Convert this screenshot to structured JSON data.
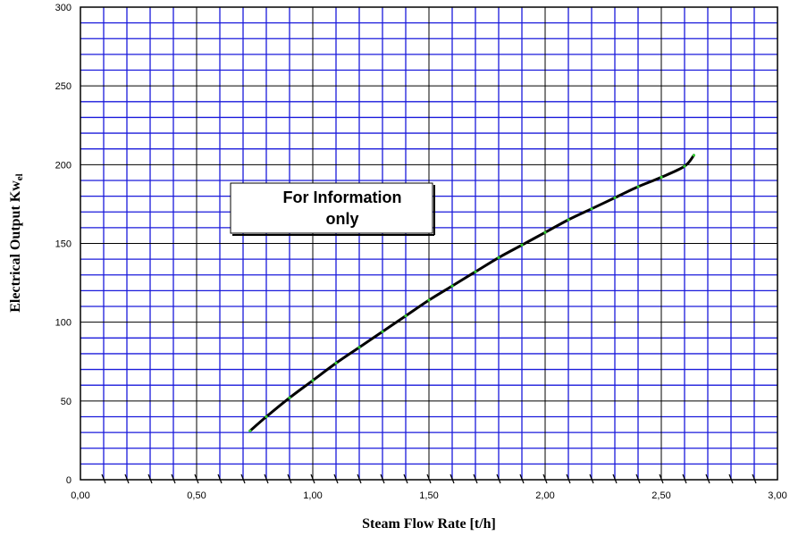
{
  "chart_data": {
    "type": "line",
    "title": "",
    "xlabel": "Steam Flow Rate [t/h]",
    "ylabel_main": "Electrical Output Kw",
    "ylabel_sub": "el",
    "xlim": [
      0,
      3
    ],
    "ylim": [
      0,
      300
    ],
    "x_ticks": [
      {
        "value": 0,
        "label": "0,00"
      },
      {
        "value": 0.5,
        "label": "0,50"
      },
      {
        "value": 1,
        "label": "1,00"
      },
      {
        "value": 1.5,
        "label": "1,50"
      },
      {
        "value": 2,
        "label": "2,00"
      },
      {
        "value": 2.5,
        "label": "2,50"
      },
      {
        "value": 3,
        "label": "3,00"
      }
    ],
    "y_ticks": [
      {
        "value": 0,
        "label": "0"
      },
      {
        "value": 50,
        "label": "50"
      },
      {
        "value": 100,
        "label": "100"
      },
      {
        "value": 150,
        "label": "150"
      },
      {
        "value": 200,
        "label": "200"
      },
      {
        "value": 250,
        "label": "250"
      },
      {
        "value": 300,
        "label": "300"
      }
    ],
    "x_minor_step": 0.1,
    "y_minor_step": 10,
    "grid": true,
    "series": [
      {
        "x": [
          0.73,
          0.8,
          0.9,
          1.0,
          1.1,
          1.2,
          1.3,
          1.4,
          1.5,
          1.6,
          1.7,
          1.8,
          1.9,
          2.0,
          2.1,
          2.2,
          2.3,
          2.4,
          2.5,
          2.6,
          2.64
        ],
        "y": [
          31,
          40,
          52,
          63,
          74,
          84,
          94,
          104,
          114,
          123,
          132,
          141,
          149,
          157,
          165,
          172,
          179,
          186,
          192,
          199,
          206
        ]
      }
    ],
    "annotation": {
      "line1": "For Information",
      "line2": "only"
    }
  },
  "colors": {
    "grid_major": "#000000",
    "grid_minor": "#1a1adb",
    "curve": "#000000",
    "marker": "#33cc33"
  }
}
